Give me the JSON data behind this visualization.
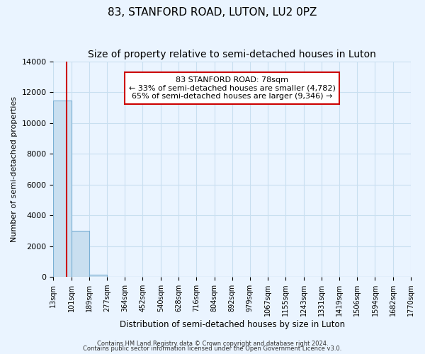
{
  "title": "83, STANFORD ROAD, LUTON, LU2 0PZ",
  "subtitle": "Size of property relative to semi-detached houses in Luton",
  "bar_values": [
    11450,
    3020,
    130,
    0,
    0,
    0,
    0,
    0,
    0,
    0,
    0,
    0,
    0,
    0,
    0,
    0,
    0,
    0,
    0,
    0
  ],
  "bin_edges": [
    13,
    101,
    189,
    277,
    364,
    452,
    540,
    628,
    716,
    804,
    892,
    979,
    1067,
    1155,
    1243,
    1331,
    1419,
    1506,
    1594,
    1682,
    1770
  ],
  "bar_color": "#c9dff0",
  "bar_edge_color": "#7ab0d4",
  "grid_color": "#c8dff0",
  "background_color": "#eaf4ff",
  "ylabel": "Number of semi-detached properties",
  "xlabel": "Distribution of semi-detached houses by size in Luton",
  "ylim": [
    0,
    14000
  ],
  "yticks": [
    0,
    2000,
    4000,
    6000,
    8000,
    10000,
    12000,
    14000
  ],
  "property_line_x": 78,
  "annotation_title": "83 STANFORD ROAD: 78sqm",
  "annotation_line1": "← 33% of semi-detached houses are smaller (4,782)",
  "annotation_line2": "65% of semi-detached houses are larger (9,346) →",
  "annotation_box_color": "#ffffff",
  "annotation_box_edge": "#cc0000",
  "property_line_color": "#cc0000",
  "footer1": "Contains HM Land Registry data © Crown copyright and database right 2024.",
  "footer2": "Contains public sector information licensed under the Open Government Licence v3.0."
}
